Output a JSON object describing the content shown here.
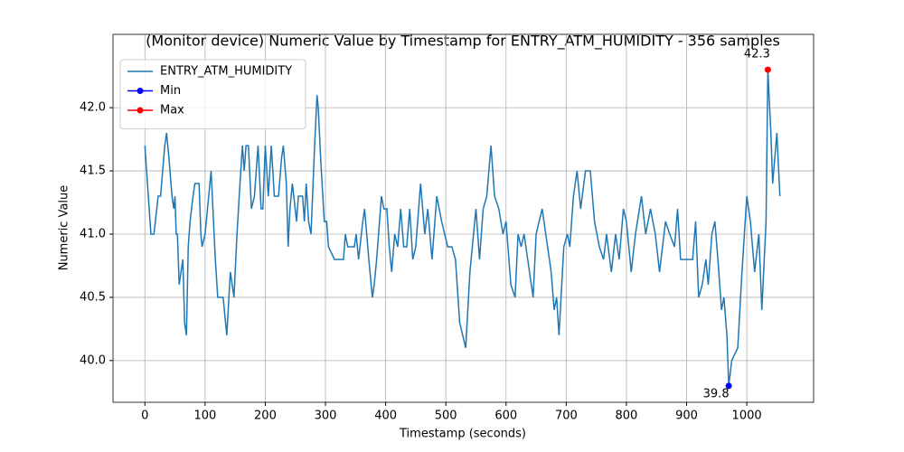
{
  "chart_data": {
    "type": "line",
    "title": "(Monitor device) Numeric Value by Timestamp for ENTRY_ATM_HUMIDITY - 356 samples",
    "x_label": "Timestamp (seconds)",
    "y_label": "Numeric Value",
    "xlim": [
      -53,
      1111
    ],
    "ylim": [
      39.67,
      42.58
    ],
    "xticks": [
      0,
      100,
      200,
      300,
      400,
      500,
      600,
      700,
      800,
      900,
      1000
    ],
    "yticks": [
      {
        "value": 40,
        "label": "40.0"
      },
      40.5,
      {
        "value": 41,
        "label": "41.0"
      },
      41.5,
      {
        "value": 42,
        "label": "42.0"
      }
    ],
    "grid": true,
    "legend": "upper left",
    "series": [
      {
        "name": "ENTRY_ATM_HUMIDITY",
        "color": "#1f77b4",
        "x": [
          0,
          10,
          15,
          22,
          26,
          33,
          36,
          40,
          45,
          48,
          50,
          52,
          54,
          57,
          63,
          66,
          69,
          72,
          75,
          80,
          83,
          90,
          93,
          95,
          100,
          106,
          110,
          113,
          117,
          121,
          130,
          136,
          142,
          148,
          153,
          158,
          162,
          165,
          168,
          172,
          177,
          182,
          188,
          193,
          196,
          200,
          205,
          210,
          215,
          222,
          227,
          230,
          235,
          238,
          241,
          245,
          252,
          255,
          262,
          265,
          268,
          272,
          276,
          282,
          286,
          288,
          292,
          298,
          302,
          305,
          315,
          330,
          333,
          337,
          348,
          351,
          355,
          362,
          365,
          372,
          378,
          381,
          385,
          393,
          397,
          402,
          406,
          410,
          415,
          420,
          425,
          430,
          435,
          440,
          445,
          450,
          458,
          465,
          470,
          477,
          485,
          493,
          498,
          503,
          510,
          516,
          523,
          533,
          540,
          550,
          556,
          562,
          568,
          575,
          581,
          588,
          595,
          600,
          608,
          615,
          620,
          625,
          630,
          636,
          645,
          650,
          660,
          666,
          675,
          680,
          684,
          688,
          696,
          702,
          706,
          712,
          718,
          724,
          732,
          740,
          747,
          755,
          762,
          767,
          775,
          782,
          788,
          795,
          800,
          808,
          815,
          825,
          832,
          840,
          848,
          855,
          865,
          872,
          880,
          885,
          890,
          910,
          915,
          920,
          926,
          932,
          936,
          942,
          947,
          952,
          958,
          962,
          967,
          970,
          975,
          985,
          992,
          1000,
          1006,
          1013,
          1020,
          1025,
          1032,
          1035,
          1040,
          1043,
          1050,
          1055
        ],
        "values": [
          41.7,
          41.0,
          41.0,
          41.3,
          41.3,
          41.7,
          41.8,
          41.6,
          41.3,
          41.2,
          41.3,
          41.0,
          41.0,
          40.6,
          40.8,
          40.3,
          40.2,
          40.9,
          41.1,
          41.3,
          41.4,
          41.4,
          41.0,
          40.9,
          41.0,
          41.3,
          41.5,
          41.2,
          40.8,
          40.5,
          40.5,
          40.2,
          40.7,
          40.5,
          41.0,
          41.4,
          41.7,
          41.5,
          41.7,
          41.7,
          41.2,
          41.3,
          41.7,
          41.2,
          41.2,
          41.7,
          41.3,
          41.7,
          41.3,
          41.3,
          41.6,
          41.7,
          41.4,
          40.9,
          41.2,
          41.4,
          41.1,
          41.3,
          41.3,
          41.1,
          41.4,
          41.1,
          41.0,
          41.7,
          42.1,
          42.0,
          41.6,
          41.1,
          41.1,
          40.9,
          40.8,
          40.8,
          41.0,
          40.9,
          40.9,
          41.0,
          40.8,
          41.1,
          41.2,
          40.8,
          40.5,
          40.6,
          40.8,
          41.3,
          41.2,
          41.2,
          40.9,
          40.7,
          41.0,
          40.9,
          41.2,
          40.9,
          40.9,
          41.2,
          40.8,
          40.9,
          41.4,
          41.0,
          41.2,
          40.8,
          41.3,
          41.1,
          41.0,
          40.9,
          40.9,
          40.8,
          40.3,
          40.1,
          40.7,
          41.2,
          40.8,
          41.2,
          41.3,
          41.7,
          41.3,
          41.2,
          41.0,
          41.1,
          40.6,
          40.5,
          41.0,
          40.9,
          41.0,
          40.8,
          40.5,
          41.0,
          41.2,
          41.0,
          40.7,
          40.4,
          40.5,
          40.2,
          40.9,
          41.0,
          40.9,
          41.3,
          41.5,
          41.2,
          41.5,
          41.5,
          41.1,
          40.9,
          40.8,
          41.0,
          40.7,
          41.0,
          40.8,
          41.2,
          41.1,
          40.7,
          41.0,
          41.3,
          41.0,
          41.2,
          41.0,
          40.7,
          41.1,
          41.0,
          40.9,
          41.2,
          40.8,
          40.8,
          41.1,
          40.5,
          40.6,
          40.8,
          40.6,
          41.0,
          41.1,
          40.8,
          40.4,
          40.5,
          40.2,
          39.8,
          40.0,
          40.1,
          40.7,
          41.3,
          41.1,
          40.7,
          41.0,
          40.4,
          41.1,
          42.3,
          41.8,
          41.4,
          41.8,
          41.3
        ]
      },
      {
        "name": "Min",
        "color": "#0000ff",
        "x": [
          970
        ],
        "values": [
          39.8
        ],
        "value_labels": [
          "39.8"
        ]
      },
      {
        "name": "Max",
        "color": "#ff0000",
        "x": [
          1035
        ],
        "values": [
          42.3
        ],
        "value_labels": [
          "42.3"
        ]
      }
    ]
  }
}
